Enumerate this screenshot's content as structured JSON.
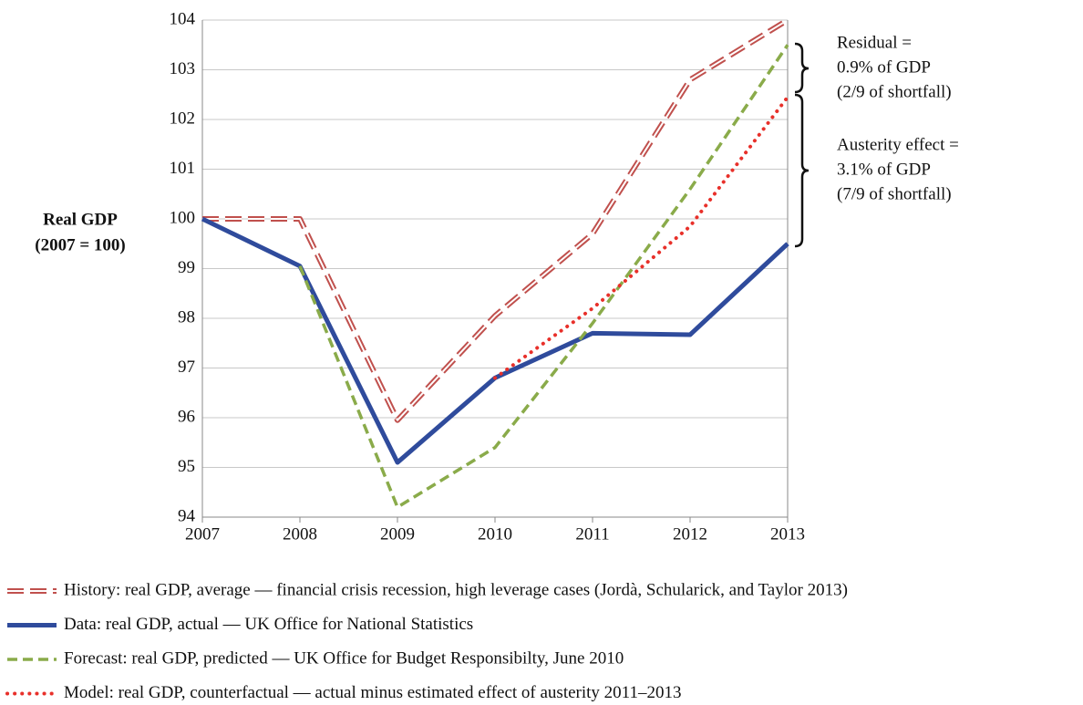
{
  "chart_data": {
    "type": "line",
    "y_label": [
      "Real GDP",
      "(2007 = 100)"
    ],
    "x": [
      2007,
      2008,
      2009,
      2010,
      2011,
      2012,
      2013
    ],
    "xlim": [
      2007,
      2013
    ],
    "xticks": [
      2007,
      2008,
      2009,
      2010,
      2011,
      2012,
      2013
    ],
    "ylim": [
      94,
      104
    ],
    "yticks": [
      94,
      95,
      96,
      97,
      98,
      99,
      100,
      101,
      102,
      103,
      104
    ],
    "grid": true,
    "series": [
      {
        "name": "History: real GDP, average — financial crisis recession, high leverage cases (Jordà, Schularick, and Taylor 2013)",
        "color": "#c0504d",
        "line_style": "double-dash",
        "values": [
          100,
          100,
          95.95,
          98.05,
          99.7,
          102.8,
          104
        ]
      },
      {
        "name": "Data: real GDP, actual — UK Office for National Statistics",
        "color": "#2f4b9c",
        "line_style": "solid",
        "values": [
          100,
          99.05,
          95.1,
          96.8,
          97.7,
          97.67,
          99.5
        ]
      },
      {
        "name": "Forecast: real GDP, predicted — UK Office for Budget Responsibilty, June 2010",
        "color": "#8aab4a",
        "line_style": "dash",
        "values": [
          null,
          99.05,
          94.2,
          95.4,
          97.9,
          100.6,
          103.5
        ]
      },
      {
        "name": "Model: real GDP, counterfactual — actual minus estimated effect of austerity 2011–2013",
        "color": "#e8302a",
        "line_style": "dot",
        "values": [
          null,
          null,
          null,
          96.8,
          98.2,
          99.85,
          102.45
        ]
      }
    ],
    "annotations": [
      [
        "Residual =",
        "0.9% of GDP",
        "(2/9 of shortfall)"
      ],
      [
        "Austerity effect =",
        "3.1% of GDP",
        "(7/9 of shortfall)"
      ]
    ]
  }
}
